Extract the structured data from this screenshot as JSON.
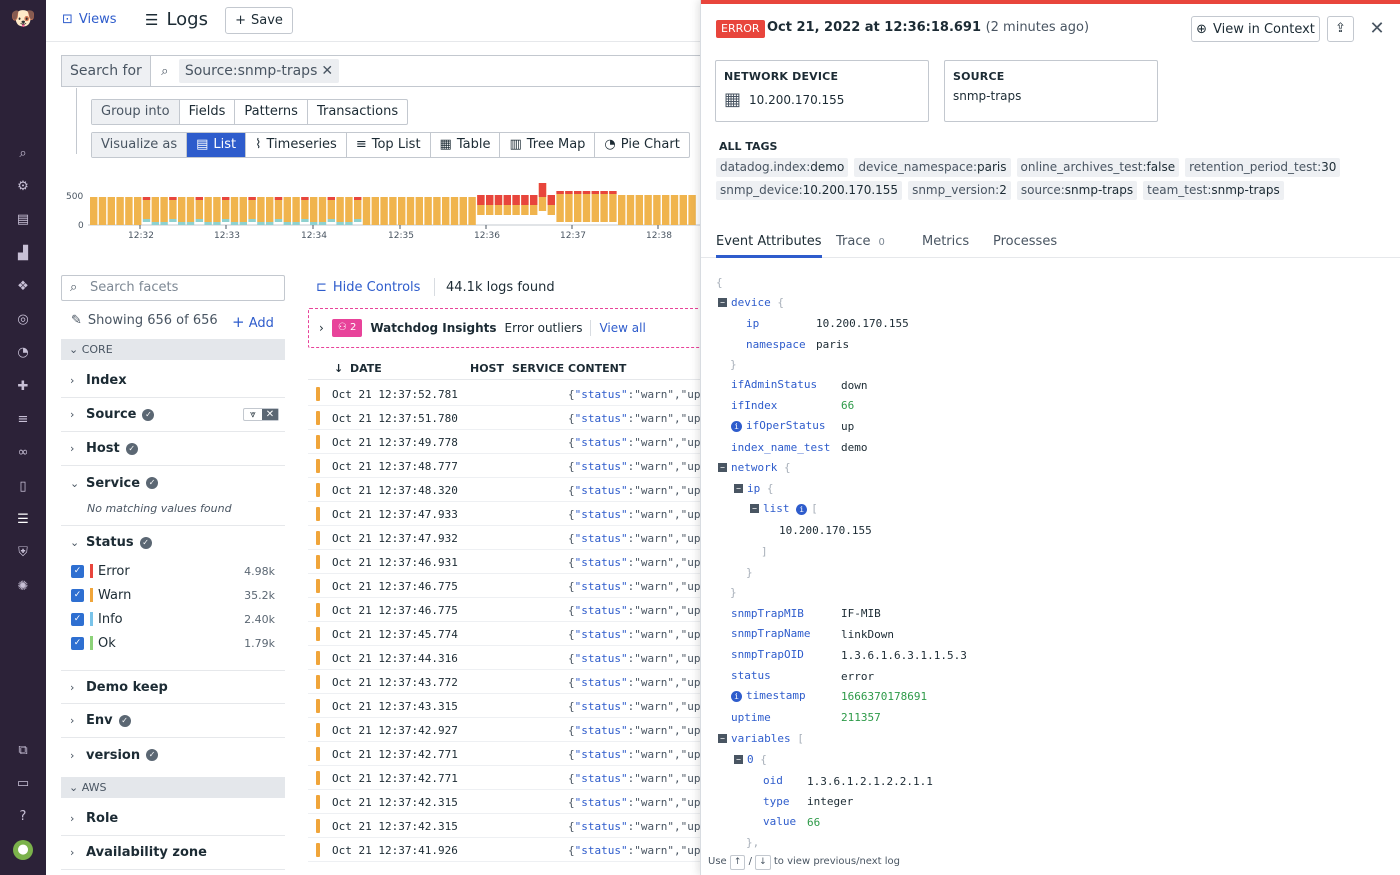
{
  "topbar": {
    "views": "Views",
    "title": "Logs",
    "save": "Save"
  },
  "search": {
    "label": "Search for",
    "chip": "Source:snmp-traps"
  },
  "group": {
    "label": "Group into",
    "options": [
      "Fields",
      "Patterns",
      "Transactions"
    ]
  },
  "visualize": {
    "label": "Visualize as",
    "options": [
      "List",
      "Timeseries",
      "Top List",
      "Table",
      "Tree Map",
      "Pie Chart"
    ]
  },
  "histogram": {
    "y_ticks": [
      "500",
      "0"
    ],
    "x_ticks": [
      "12:32",
      "12:33",
      "12:34",
      "12:35",
      "12:36",
      "12:37",
      "12:38"
    ]
  },
  "facets": {
    "search_placeholder": "Search facets",
    "showing": "Showing 656 of 656",
    "add": "Add",
    "sections": [
      "CORE",
      "AWS"
    ],
    "core": [
      "Index",
      "Source",
      "Host",
      "Service",
      "Status",
      "Demo keep",
      "Env",
      "version"
    ],
    "aws": [
      "Role",
      "Availability zone"
    ],
    "service_empty": "No matching values found",
    "status": [
      {
        "name": "Error",
        "count": "4.98k",
        "color": "#e8453c"
      },
      {
        "name": "Warn",
        "count": "35.2k",
        "color": "#f0a53a"
      },
      {
        "name": "Info",
        "count": "2.40k",
        "color": "#79c3e9"
      },
      {
        "name": "Ok",
        "count": "1.79k",
        "color": "#8cd279"
      }
    ]
  },
  "list": {
    "hide_controls": "Hide Controls",
    "found": "44.1k logs found",
    "watchdog": {
      "count": "2",
      "title": "Watchdog Insights",
      "desc": "Error outliers",
      "link": "View all"
    },
    "columns": [
      "DATE",
      "HOST",
      "SERVICE",
      "CONTENT"
    ],
    "rows": [
      "Oct 21 12:37:52.781",
      "Oct 21 12:37:51.780",
      "Oct 21 12:37:49.778",
      "Oct 21 12:37:48.777",
      "Oct 21 12:37:48.320",
      "Oct 21 12:37:47.933",
      "Oct 21 12:37:47.932",
      "Oct 21 12:37:46.931",
      "Oct 21 12:37:46.775",
      "Oct 21 12:37:46.775",
      "Oct 21 12:37:45.774",
      "Oct 21 12:37:44.316",
      "Oct 21 12:37:43.772",
      "Oct 21 12:37:43.315",
      "Oct 21 12:37:42.927",
      "Oct 21 12:37:42.771",
      "Oct 21 12:37:42.771",
      "Oct 21 12:37:42.315",
      "Oct 21 12:37:42.315",
      "Oct 21 12:37:41.926"
    ],
    "content_key": "\"status\"",
    "content_value": ":\"warn\",\"up"
  },
  "detail": {
    "badge": "ERROR",
    "timestamp": "Oct 21, 2022 at 12:36:18.691",
    "ago": "(2 minutes ago)",
    "view_context": "View in Context",
    "cards": [
      {
        "title": "NETWORK DEVICE",
        "value": "10.200.170.155"
      },
      {
        "title": "SOURCE",
        "value": "snmp-traps"
      }
    ],
    "tags_title": "ALL TAGS",
    "tags": [
      [
        "datadog.index:",
        "demo"
      ],
      [
        "device_namespace:",
        "paris"
      ],
      [
        "online_archives_test:",
        "false"
      ],
      [
        "retention_period_test:",
        "30"
      ],
      [
        "snmp_device:",
        "10.200.170.155"
      ],
      [
        "snmp_version:",
        "2"
      ],
      [
        "source:",
        "snmp-traps"
      ],
      [
        "team_test:",
        "snmp-traps"
      ]
    ],
    "tabs": [
      "Event Attributes",
      "Trace",
      "Metrics",
      "Processes"
    ],
    "trace_count": "0",
    "json": {
      "device": "device",
      "ip": "ip",
      "ip_v": "10.200.170.155",
      "namespace": "namespace",
      "namespace_v": "paris",
      "ifAdminStatus": "ifAdminStatus",
      "ifAdminStatus_v": "down",
      "ifIndex": "ifIndex",
      "ifIndex_v": "66",
      "ifOperStatus": "ifOperStatus",
      "ifOperStatus_v": "up",
      "index_name_test": "index_name_test",
      "index_name_test_v": "demo",
      "network": "network",
      "list": "list",
      "list_v": "10.200.170.155",
      "snmpTrapMIB": "snmpTrapMIB",
      "snmpTrapMIB_v": "IF-MIB",
      "snmpTrapName": "snmpTrapName",
      "snmpTrapName_v": "linkDown",
      "snmpTrapOID": "snmpTrapOID",
      "snmpTrapOID_v": "1.3.6.1.6.3.1.1.5.3",
      "status": "status",
      "status_v": "error",
      "timestamp": "timestamp",
      "timestamp_v": "1666370178691",
      "uptime": "uptime",
      "uptime_v": "211357",
      "variables": "variables",
      "idx0": "0",
      "oid": "oid",
      "oid_v": "1.3.6.1.2.1.2.2.1.1",
      "type": "type",
      "type_v": "integer",
      "value": "value",
      "value_v": "66"
    },
    "footer_use": "Use",
    "footer_rest": "to view previous/next log"
  }
}
